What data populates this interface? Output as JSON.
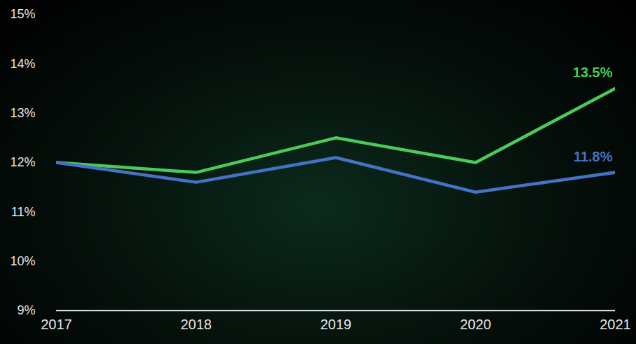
{
  "chart_data": {
    "type": "line",
    "x": [
      2017,
      2018,
      2019,
      2020,
      2021
    ],
    "xlim": [
      2017,
      2021
    ],
    "xticks": [
      2017,
      2018,
      2019,
      2020,
      2021
    ],
    "ylim": [
      9,
      15
    ],
    "yticks": [
      {
        "value": 9,
        "label": "9%"
      },
      {
        "value": 10,
        "label": "10%"
      },
      {
        "value": 11,
        "label": "11%"
      },
      {
        "value": 12,
        "label": "12%"
      },
      {
        "value": 13,
        "label": "13%"
      },
      {
        "value": 14,
        "label": "14%"
      },
      {
        "value": 15,
        "label": "15%"
      }
    ],
    "grid": false,
    "data_labels": true,
    "series": [
      {
        "color": "#4cc95a",
        "values": [
          12.0,
          11.8,
          12.5,
          12.0,
          13.5
        ],
        "value_labels": [
          null,
          null,
          null,
          null,
          "13.5%"
        ]
      },
      {
        "color": "#4472c4",
        "values": [
          12.0,
          11.6,
          12.1,
          11.4,
          11.8
        ],
        "value_labels": [
          null,
          null,
          null,
          null,
          "11.8%"
        ]
      }
    ]
  }
}
